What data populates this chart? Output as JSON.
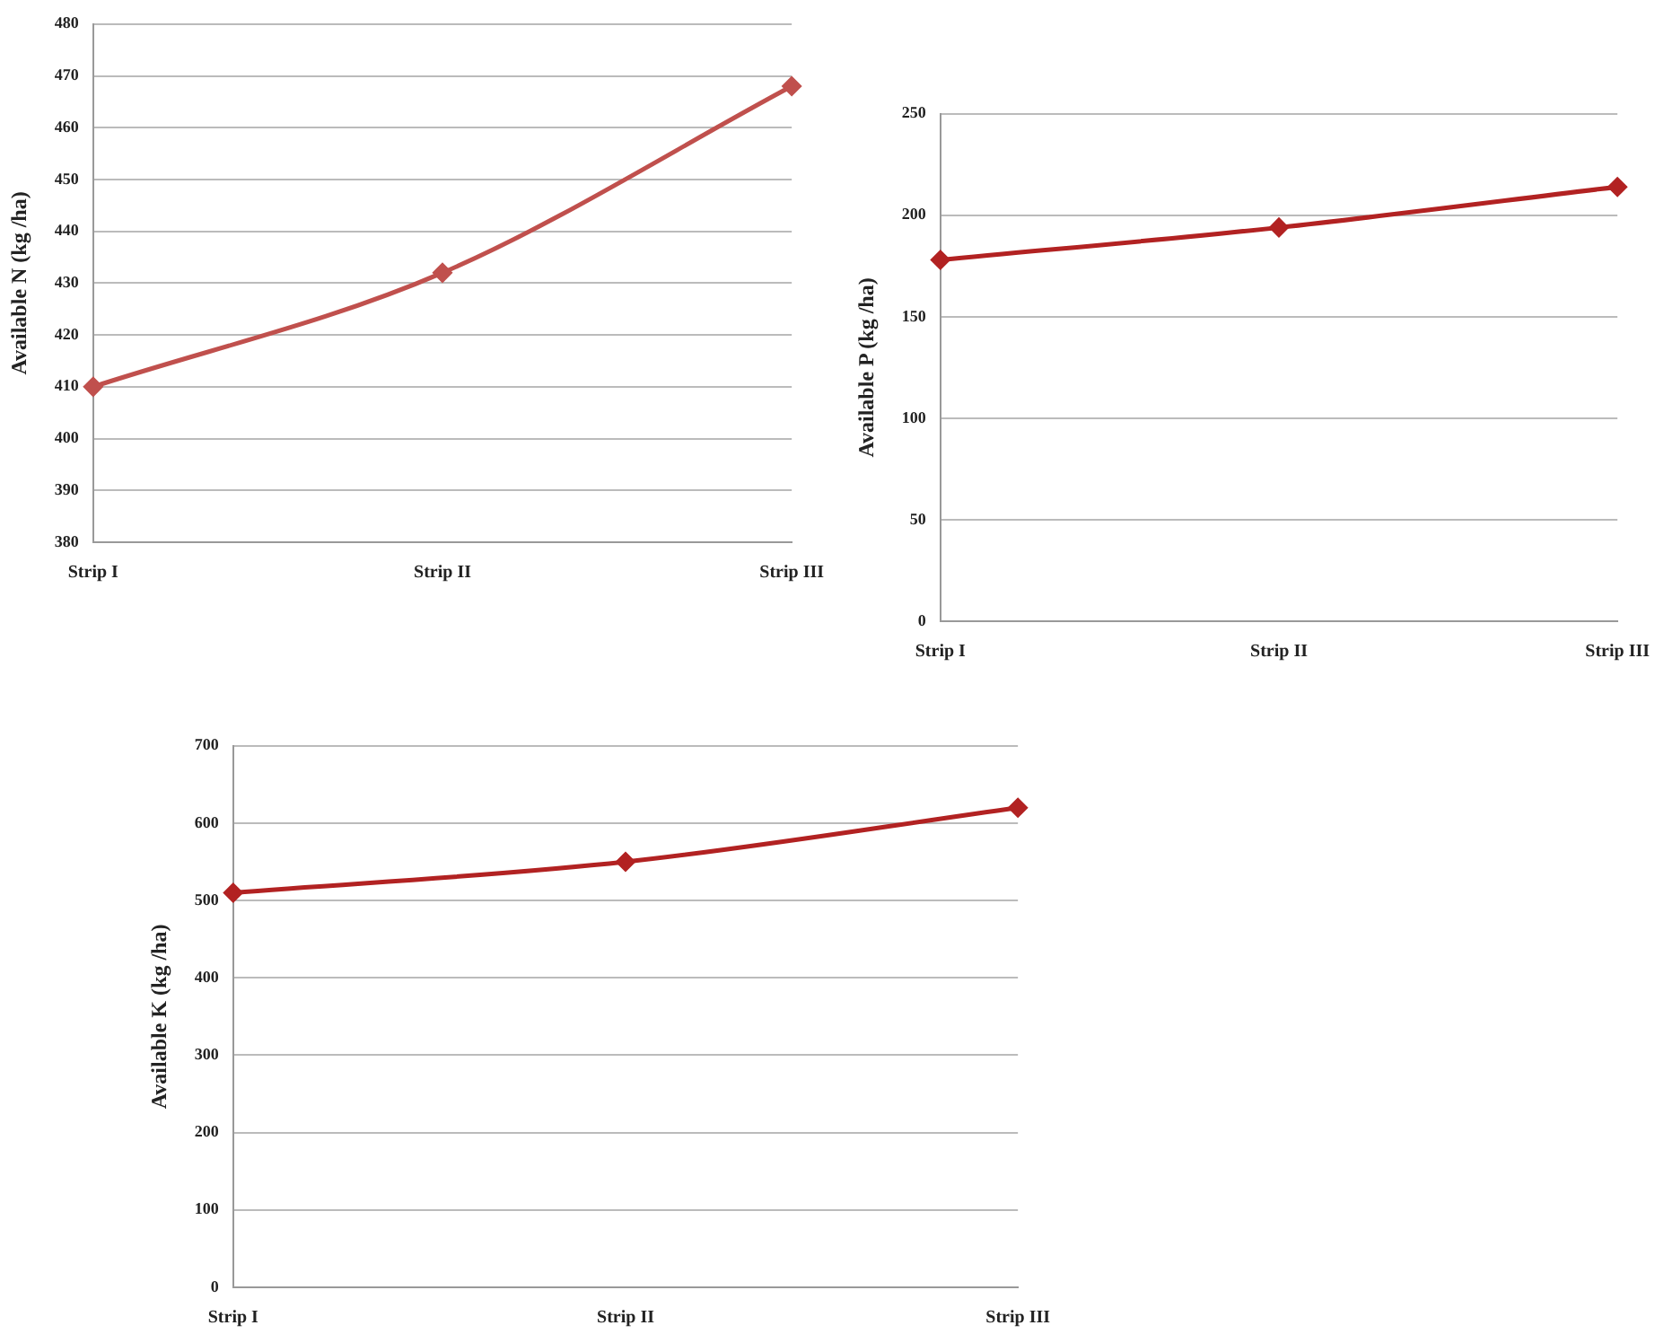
{
  "chart_data": [
    {
      "type": "line",
      "ylabel": "Available N (kg /ha)",
      "categories": [
        "Strip I",
        "Strip II",
        "Strip III"
      ],
      "series": [
        {
          "color": "#c0504d",
          "values": [
            410,
            432,
            468
          ]
        }
      ],
      "ylim": [
        380,
        480
      ],
      "yticks": [
        380,
        390,
        400,
        410,
        420,
        430,
        440,
        450,
        460,
        470,
        480
      ],
      "grid": "y",
      "marker": "diamond",
      "line_style": "solid"
    },
    {
      "type": "line",
      "ylabel": "Available P (kg /ha)",
      "categories": [
        "Strip I",
        "Strip II",
        "Strip III"
      ],
      "series": [
        {
          "color": "#b22222",
          "values": [
            178,
            194,
            214
          ]
        }
      ],
      "ylim": [
        0,
        250
      ],
      "yticks": [
        0,
        50,
        100,
        150,
        200,
        250
      ],
      "grid": "y",
      "marker": "diamond",
      "line_style": "solid"
    },
    {
      "type": "line",
      "ylabel": "Available K (kg /ha)",
      "categories": [
        "Strip I",
        "Strip II",
        "Strip III"
      ],
      "series": [
        {
          "color": "#b22222",
          "values": [
            510,
            550,
            620
          ]
        }
      ],
      "ylim": [
        0,
        700
      ],
      "yticks": [
        0,
        100,
        200,
        300,
        400,
        500,
        600,
        700
      ],
      "grid": "y",
      "marker": "diamond",
      "line_style": "solid"
    }
  ]
}
